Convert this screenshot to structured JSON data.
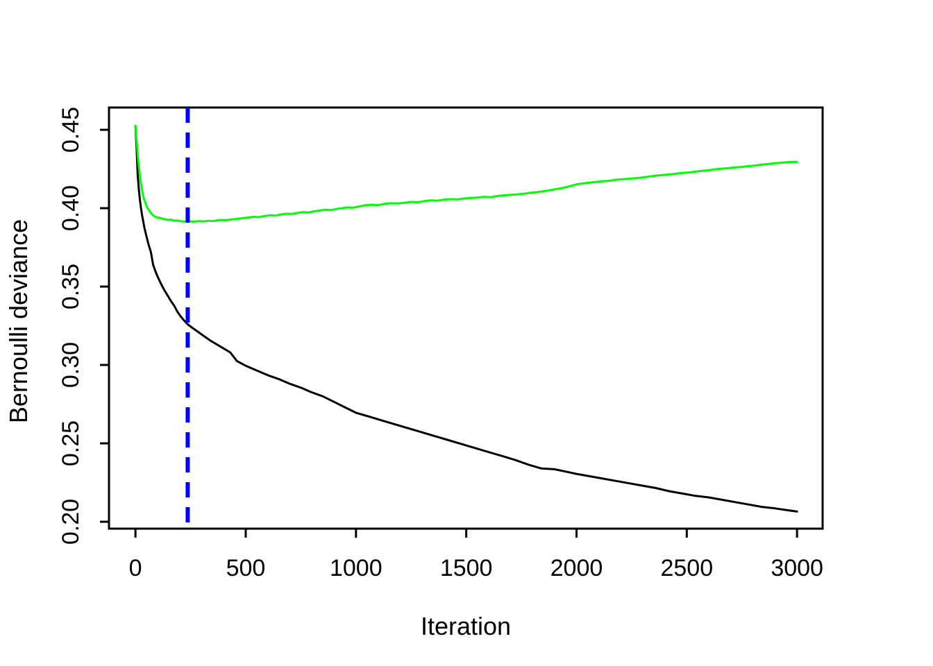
{
  "figure": {
    "background": "#FFFFFF",
    "border_color": "#000000"
  },
  "chart_data": {
    "type": "line",
    "title": "",
    "xlabel": "Iteration",
    "ylabel": "Bernoulli deviance",
    "grid": false,
    "legend": "none",
    "xlim": [
      -120,
      3116
    ],
    "ylim": [
      0.1956,
      0.4642
    ],
    "x_ticks": [
      0,
      500,
      1000,
      1500,
      2000,
      2500,
      3000
    ],
    "x_tick_labels": [
      "0",
      "500",
      "1000",
      "1500",
      "2000",
      "2500",
      "3000"
    ],
    "y_ticks": [
      0.2,
      0.25,
      0.3,
      0.35,
      0.4,
      0.45
    ],
    "y_tick_labels": [
      "0.20",
      "0.25",
      "0.30",
      "0.35",
      "0.40",
      "0.45"
    ],
    "axis_color": "#000000",
    "vline": {
      "x": 237,
      "color": "#0000FF",
      "line_style": "dashed",
      "line_width": 6
    },
    "series": [
      {
        "name": "black",
        "color": "#000000",
        "line_width": 3,
        "points": [
          [
            0,
            0.4525
          ],
          [
            5,
            0.4395
          ],
          [
            10,
            0.4215
          ],
          [
            15,
            0.4125
          ],
          [
            20,
            0.4055
          ],
          [
            25,
            0.4
          ],
          [
            30,
            0.3955
          ],
          [
            40,
            0.388
          ],
          [
            50,
            0.382
          ],
          [
            60,
            0.3765
          ],
          [
            70,
            0.372
          ],
          [
            80,
            0.364
          ],
          [
            90,
            0.36
          ],
          [
            100,
            0.3565
          ],
          [
            115,
            0.352
          ],
          [
            130,
            0.348
          ],
          [
            145,
            0.3445
          ],
          [
            160,
            0.341
          ],
          [
            175,
            0.338
          ],
          [
            190,
            0.334
          ],
          [
            205,
            0.331
          ],
          [
            220,
            0.3285
          ],
          [
            236,
            0.326
          ],
          [
            260,
            0.3235
          ],
          [
            285,
            0.321
          ],
          [
            310,
            0.3185
          ],
          [
            340,
            0.3155
          ],
          [
            370,
            0.313
          ],
          [
            400,
            0.3105
          ],
          [
            430,
            0.308
          ],
          [
            460,
            0.3025
          ],
          [
            500,
            0.2995
          ],
          [
            550,
            0.2965
          ],
          [
            600,
            0.2935
          ],
          [
            650,
            0.291
          ],
          [
            700,
            0.288
          ],
          [
            750,
            0.2855
          ],
          [
            800,
            0.2825
          ],
          [
            850,
            0.28
          ],
          [
            900,
            0.2765
          ],
          [
            950,
            0.273
          ],
          [
            1000,
            0.2695
          ],
          [
            1060,
            0.267
          ],
          [
            1120,
            0.2645
          ],
          [
            1180,
            0.262
          ],
          [
            1240,
            0.2595
          ],
          [
            1300,
            0.257
          ],
          [
            1360,
            0.2545
          ],
          [
            1420,
            0.252
          ],
          [
            1480,
            0.2495
          ],
          [
            1540,
            0.247
          ],
          [
            1600,
            0.2445
          ],
          [
            1660,
            0.242
          ],
          [
            1720,
            0.2395
          ],
          [
            1780,
            0.2365
          ],
          [
            1840,
            0.234
          ],
          [
            1900,
            0.2335
          ],
          [
            1950,
            0.232
          ],
          [
            2000,
            0.2305
          ],
          [
            2060,
            0.229
          ],
          [
            2120,
            0.2275
          ],
          [
            2180,
            0.226
          ],
          [
            2240,
            0.2245
          ],
          [
            2300,
            0.223
          ],
          [
            2360,
            0.2215
          ],
          [
            2420,
            0.2195
          ],
          [
            2480,
            0.218
          ],
          [
            2540,
            0.2165
          ],
          [
            2600,
            0.2155
          ],
          [
            2660,
            0.214
          ],
          [
            2720,
            0.2125
          ],
          [
            2780,
            0.211
          ],
          [
            2840,
            0.2095
          ],
          [
            2900,
            0.2085
          ],
          [
            2950,
            0.2075
          ],
          [
            3000,
            0.2065
          ]
        ]
      },
      {
        "name": "green",
        "color": "#00FF00",
        "line_width": 3,
        "points": [
          [
            0,
            0.4525
          ],
          [
            4,
            0.4455
          ],
          [
            8,
            0.4385
          ],
          [
            12,
            0.4315
          ],
          [
            16,
            0.426
          ],
          [
            20,
            0.421
          ],
          [
            25,
            0.4155
          ],
          [
            30,
            0.4115
          ],
          [
            35,
            0.408
          ],
          [
            40,
            0.4055
          ],
          [
            45,
            0.4035
          ],
          [
            50,
            0.4015
          ],
          [
            55,
            0.4
          ],
          [
            60,
            0.399
          ],
          [
            65,
            0.398
          ],
          [
            70,
            0.397
          ],
          [
            75,
            0.3962
          ],
          [
            80,
            0.3955
          ],
          [
            85,
            0.395
          ],
          [
            90,
            0.3945
          ],
          [
            100,
            0.394
          ],
          [
            110,
            0.3938
          ],
          [
            120,
            0.3934
          ],
          [
            130,
            0.393
          ],
          [
            140,
            0.3928
          ],
          [
            150,
            0.3925
          ],
          [
            160,
            0.3927
          ],
          [
            170,
            0.3923
          ],
          [
            180,
            0.392
          ],
          [
            190,
            0.3922
          ],
          [
            200,
            0.3918
          ],
          [
            215,
            0.3916
          ],
          [
            230,
            0.3915
          ],
          [
            245,
            0.3917
          ],
          [
            260,
            0.3914
          ],
          [
            275,
            0.3916
          ],
          [
            290,
            0.3918
          ],
          [
            310,
            0.3915
          ],
          [
            330,
            0.392
          ],
          [
            350,
            0.3918
          ],
          [
            370,
            0.3922
          ],
          [
            390,
            0.3925
          ],
          [
            410,
            0.3923
          ],
          [
            430,
            0.3928
          ],
          [
            450,
            0.393
          ],
          [
            470,
            0.3933
          ],
          [
            490,
            0.3938
          ],
          [
            510,
            0.394
          ],
          [
            535,
            0.3945
          ],
          [
            560,
            0.3943
          ],
          [
            585,
            0.395
          ],
          [
            610,
            0.3955
          ],
          [
            635,
            0.3953
          ],
          [
            660,
            0.396
          ],
          [
            685,
            0.3965
          ],
          [
            710,
            0.3963
          ],
          [
            735,
            0.397
          ],
          [
            760,
            0.3975
          ],
          [
            785,
            0.3973
          ],
          [
            810,
            0.398
          ],
          [
            835,
            0.3985
          ],
          [
            860,
            0.399
          ],
          [
            885,
            0.3988
          ],
          [
            910,
            0.3995
          ],
          [
            935,
            0.4
          ],
          [
            960,
            0.4005
          ],
          [
            985,
            0.4003
          ],
          [
            1010,
            0.401
          ],
          [
            1040,
            0.4018
          ],
          [
            1070,
            0.4022
          ],
          [
            1100,
            0.402
          ],
          [
            1130,
            0.4028
          ],
          [
            1160,
            0.4032
          ],
          [
            1190,
            0.403
          ],
          [
            1220,
            0.4035
          ],
          [
            1250,
            0.404
          ],
          [
            1280,
            0.4038
          ],
          [
            1310,
            0.4045
          ],
          [
            1340,
            0.405
          ],
          [
            1370,
            0.4048
          ],
          [
            1400,
            0.4055
          ],
          [
            1430,
            0.4058
          ],
          [
            1460,
            0.4056
          ],
          [
            1490,
            0.4062
          ],
          [
            1520,
            0.4065
          ],
          [
            1550,
            0.4068
          ],
          [
            1580,
            0.4072
          ],
          [
            1610,
            0.407
          ],
          [
            1640,
            0.4078
          ],
          [
            1670,
            0.4082
          ],
          [
            1700,
            0.4085
          ],
          [
            1730,
            0.4088
          ],
          [
            1760,
            0.4092
          ],
          [
            1790,
            0.4098
          ],
          [
            1820,
            0.4102
          ],
          [
            1850,
            0.4108
          ],
          [
            1880,
            0.4115
          ],
          [
            1910,
            0.4122
          ],
          [
            1940,
            0.413
          ],
          [
            1970,
            0.414
          ],
          [
            2000,
            0.4152
          ],
          [
            2030,
            0.4158
          ],
          [
            2060,
            0.4163
          ],
          [
            2090,
            0.4168
          ],
          [
            2120,
            0.4172
          ],
          [
            2150,
            0.4175
          ],
          [
            2180,
            0.4182
          ],
          [
            2210,
            0.4185
          ],
          [
            2240,
            0.4188
          ],
          [
            2270,
            0.4192
          ],
          [
            2300,
            0.4196
          ],
          [
            2330,
            0.4202
          ],
          [
            2360,
            0.4208
          ],
          [
            2390,
            0.4212
          ],
          [
            2420,
            0.4215
          ],
          [
            2450,
            0.422
          ],
          [
            2480,
            0.4225
          ],
          [
            2510,
            0.4228
          ],
          [
            2540,
            0.4233
          ],
          [
            2570,
            0.4238
          ],
          [
            2600,
            0.4242
          ],
          [
            2630,
            0.4248
          ],
          [
            2660,
            0.4252
          ],
          [
            2690,
            0.4256
          ],
          [
            2720,
            0.426
          ],
          [
            2750,
            0.4263
          ],
          [
            2780,
            0.4268
          ],
          [
            2810,
            0.4272
          ],
          [
            2840,
            0.4278
          ],
          [
            2870,
            0.4282
          ],
          [
            2900,
            0.4287
          ],
          [
            2930,
            0.429
          ],
          [
            2960,
            0.4294
          ],
          [
            2980,
            0.4295
          ],
          [
            3000,
            0.4296
          ]
        ]
      }
    ]
  }
}
